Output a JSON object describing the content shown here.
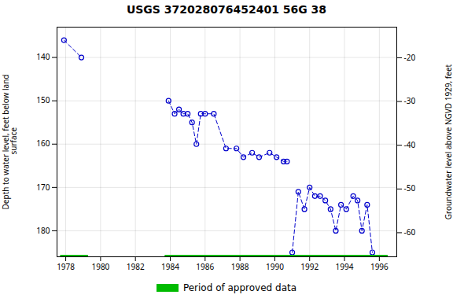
{
  "chart_data": {
    "type": "line",
    "title": "USGS 372028076452401 56G 38",
    "ylabel": "Depth to water level, feet below land\n surface",
    "y2label": "Groundwater level above NGVD 1929, feet",
    "xlim": [
      1977.5,
      1997.0
    ],
    "xticks": [
      1978,
      1980,
      1982,
      1984,
      1986,
      1988,
      1990,
      1992,
      1994,
      1996
    ],
    "ylim": [
      186,
      133
    ],
    "yticks": [
      140,
      150,
      160,
      170,
      180
    ],
    "y2lim": [
      -65.5,
      -13
    ],
    "y2ticks": [
      -20,
      -30,
      -40,
      -50,
      -60
    ],
    "grid": true,
    "legend": "bottom",
    "series": [
      {
        "type": "line",
        "color": "#0000cc",
        "marker": "o",
        "line_style": "dashed",
        "x": [
          1977.9,
          1978.9,
          null,
          1983.9,
          1984.25,
          1984.5,
          1984.75,
          1985.0,
          1985.25,
          1985.5,
          1985.75,
          1986.0,
          1986.5,
          1987.2,
          1987.8,
          1988.2,
          1988.7,
          1989.1,
          1989.7,
          1990.1,
          1990.5,
          1990.7,
          null,
          1991.0,
          1991.35,
          1991.7,
          1992.0,
          1992.3,
          1992.6,
          1992.9,
          1993.2,
          1993.5,
          1993.8,
          1994.1,
          1994.5,
          1994.75,
          1995.0,
          1995.3,
          1995.6
        ],
        "values": [
          136,
          140,
          null,
          150,
          153,
          152,
          153,
          153,
          155,
          160,
          153,
          153,
          153,
          161,
          161,
          163,
          162,
          163,
          162,
          163,
          164,
          164,
          null,
          185,
          171,
          175,
          170,
          172,
          172,
          173,
          175,
          180,
          174,
          175,
          172,
          173,
          180,
          174,
          185
        ]
      },
      {
        "name": "Period of approved data",
        "type": "range",
        "color": "#00bb00",
        "ranges": [
          [
            1977.7,
            1979.3
          ],
          [
            1983.7,
            1996.5
          ]
        ]
      }
    ]
  }
}
